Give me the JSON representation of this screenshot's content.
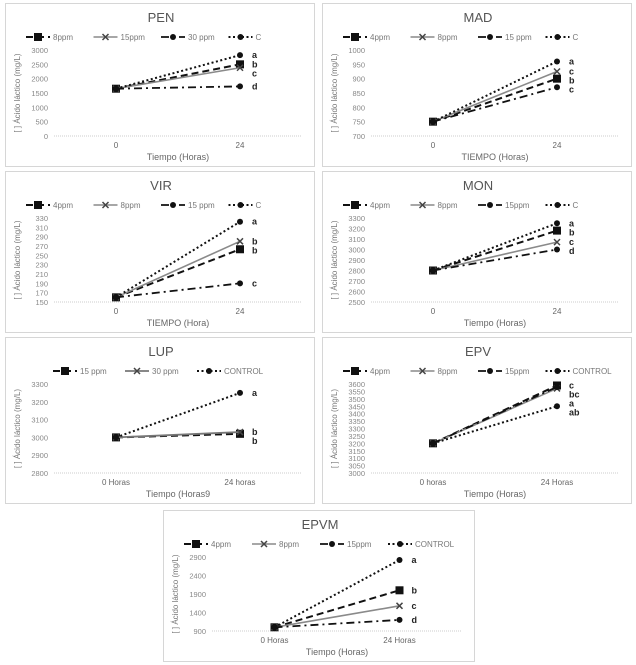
{
  "chart_data": [
    {
      "type": "line",
      "title": "PEN",
      "xlabel": "Tiempo (Horas)",
      "ylabel": "[ ] Ácido láctico (mg/L)",
      "categories": [
        "0",
        "24"
      ],
      "ylim": [
        0,
        3000
      ],
      "ystep": 500,
      "yticks": [
        "0",
        "500",
        "1000",
        "1500",
        "2000",
        "2500",
        "3000"
      ],
      "series": [
        {
          "name": "8ppm",
          "style": "dash-square",
          "values": [
            1650,
            2500
          ],
          "letter": "b"
        },
        {
          "name": "15ppm",
          "style": "solid-gray",
          "values": [
            1650,
            2380
          ],
          "letter": "c"
        },
        {
          "name": "30 ppm",
          "style": "dashdot-circle",
          "values": [
            1650,
            1730
          ],
          "letter": "d"
        },
        {
          "name": "C",
          "style": "dot-circle",
          "values": [
            1650,
            2820
          ],
          "letter": "a"
        }
      ]
    },
    {
      "type": "line",
      "title": "MAD",
      "xlabel": "TIEMPO (Horas)",
      "ylabel": "[ ] Ácido láctico (mg/L)",
      "categories": [
        "0",
        "24"
      ],
      "ylim": [
        700,
        1000
      ],
      "ystep": 50,
      "yticks": [
        "700",
        "750",
        "800",
        "850",
        "900",
        "950",
        "1000"
      ],
      "series": [
        {
          "name": "4ppm",
          "style": "dash-square",
          "values": [
            750,
            900
          ],
          "letter": "b"
        },
        {
          "name": "8ppm",
          "style": "solid-gray",
          "values": [
            750,
            925
          ],
          "letter": "c"
        },
        {
          "name": "15 ppm",
          "style": "dashdot-circle",
          "values": [
            750,
            870
          ],
          "letter": "c"
        },
        {
          "name": "C",
          "style": "dot-circle",
          "values": [
            750,
            960
          ],
          "letter": "a"
        }
      ]
    },
    {
      "type": "line",
      "title": "VIR",
      "xlabel": "TIEMPO (Hora)",
      "ylabel": "[ ] Ácido láctico (mg/L)",
      "categories": [
        "0",
        "24"
      ],
      "ylim": [
        150,
        330
      ],
      "ystep": 20,
      "yticks": [
        "150",
        "170",
        "190",
        "210",
        "230",
        "250",
        "270",
        "290",
        "310",
        "330"
      ],
      "series": [
        {
          "name": "4ppm",
          "style": "dash-square",
          "values": [
            160,
            263
          ],
          "letter": "b"
        },
        {
          "name": "8ppm",
          "style": "solid-gray",
          "values": [
            160,
            280
          ],
          "letter": "b"
        },
        {
          "name": "15 ppm",
          "style": "dashdot-circle",
          "values": [
            160,
            190
          ],
          "letter": "c"
        },
        {
          "name": "C",
          "style": "dot-circle",
          "values": [
            160,
            322
          ],
          "letter": "a"
        }
      ]
    },
    {
      "type": "line",
      "title": "MON",
      "xlabel": "Tiempo (Horas)",
      "ylabel": "[ ] Ácido láctico (mg/L)",
      "categories": [
        "0",
        "24"
      ],
      "ylim": [
        2500,
        3300
      ],
      "ystep": 100,
      "yticks": [
        "2500",
        "2600",
        "2700",
        "2800",
        "2900",
        "3000",
        "3100",
        "3200",
        "3300"
      ],
      "series": [
        {
          "name": "4ppm",
          "style": "dash-square",
          "values": [
            2800,
            3180
          ],
          "letter": "b"
        },
        {
          "name": "8ppm",
          "style": "solid-gray",
          "values": [
            2800,
            3070
          ],
          "letter": "c"
        },
        {
          "name": "15ppm",
          "style": "dashdot-circle",
          "values": [
            2800,
            3000
          ],
          "letter": "d"
        },
        {
          "name": "C",
          "style": "dot-circle",
          "values": [
            2800,
            3250
          ],
          "letter": "a"
        }
      ]
    },
    {
      "type": "line",
      "title": "LUP",
      "xlabel": "Tiempo (Horas9",
      "ylabel": "[ ] Ácido láctico (mg/L)",
      "categories": [
        "0 Horas",
        "24 horas"
      ],
      "ylim": [
        2800,
        3300
      ],
      "ystep": 100,
      "yticks": [
        "2800",
        "2900",
        "3000",
        "3100",
        "3200",
        "3300"
      ],
      "series": [
        {
          "name": "15 ppm",
          "style": "dash-square",
          "values": [
            3000,
            3020
          ],
          "letter": "b"
        },
        {
          "name": "30 ppm",
          "style": "solid-x",
          "values": [
            3000,
            3030
          ],
          "letter": "b"
        },
        {
          "name": "CONTROL",
          "style": "dot-circle",
          "values": [
            3000,
            3250
          ],
          "letter": "a"
        }
      ]
    },
    {
      "type": "line",
      "title": "EPV",
      "xlabel": "Tiempo (Horas)",
      "ylabel": "[ ] Ácido láctico (mg/L)",
      "categories": [
        "0 horas",
        "24 Horas"
      ],
      "ylim": [
        3000,
        3600
      ],
      "ystep": 50,
      "yticks": [
        "3000",
        "3050",
        "3100",
        "3150",
        "3200",
        "3250",
        "3300",
        "3350",
        "3400",
        "3450",
        "3500",
        "3550",
        "3600"
      ],
      "series": [
        {
          "name": "4ppm",
          "style": "dash-square",
          "values": [
            3200,
            3590
          ],
          "letter": "c"
        },
        {
          "name": "8ppm",
          "style": "solid-gray",
          "values": [
            3200,
            3570
          ],
          "letter": "a"
        },
        {
          "name": "15ppm",
          "style": "dashdot-circle",
          "values": [
            3200,
            3580
          ],
          "letter": "bc"
        },
        {
          "name": "CONTROL",
          "style": "dot-circle",
          "values": [
            3200,
            3450
          ],
          "letter": "ab"
        }
      ]
    },
    {
      "type": "line",
      "title": "EPVM",
      "xlabel": "Tiempo (Horas)",
      "ylabel": "[ ] Ácido láctico (mg/L)",
      "categories": [
        "0 Horas",
        "24 Horas"
      ],
      "ylim": [
        900,
        2900
      ],
      "ystep": 500,
      "yticks": [
        "900",
        "1400",
        "1900",
        "2400",
        "2900"
      ],
      "series": [
        {
          "name": "4ppm",
          "style": "dash-square",
          "values": [
            1000,
            2000
          ],
          "letter": "b"
        },
        {
          "name": "8ppm",
          "style": "solid-gray",
          "values": [
            1000,
            1580
          ],
          "letter": "c"
        },
        {
          "name": "15ppm",
          "style": "dashdot-circle",
          "values": [
            1000,
            1200
          ],
          "letter": "d"
        },
        {
          "name": "CONTROL",
          "style": "dot-circle",
          "values": [
            1000,
            2820
          ],
          "letter": "a"
        }
      ]
    }
  ]
}
